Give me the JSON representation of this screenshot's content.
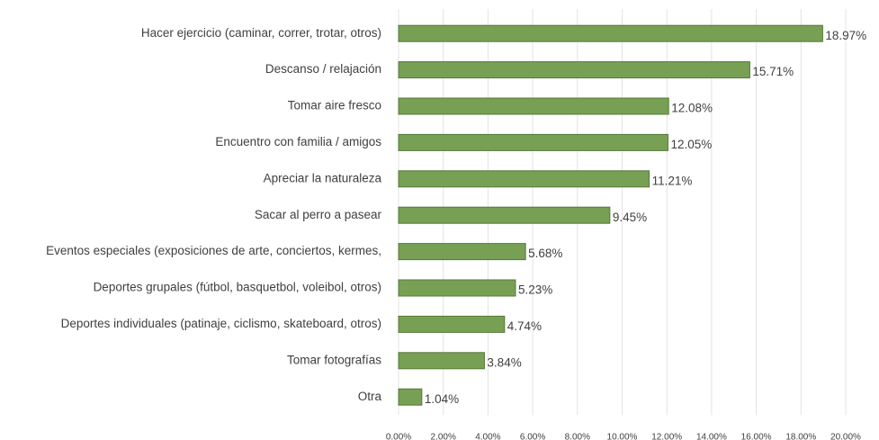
{
  "chart_data": {
    "type": "bar",
    "orientation": "horizontal",
    "categories": [
      "Hacer ejercicio (caminar, correr, trotar, otros)",
      "Descanso / relajación",
      "Tomar aire fresco",
      "Encuentro con familia / amigos",
      "Apreciar la naturaleza",
      "Sacar al perro a pasear",
      "Eventos especiales (exposiciones de arte, conciertos, kermes,",
      "Deportes grupales (fútbol, basquetbol, voleibol, otros)",
      "Deportes individuales (patinaje, ciclismo, skateboard, otros)",
      "Tomar fotografías",
      "Otra"
    ],
    "values": [
      18.97,
      15.71,
      12.08,
      12.05,
      11.21,
      9.45,
      5.68,
      5.23,
      4.74,
      3.84,
      1.04
    ],
    "value_labels": [
      "18.97%",
      "15.71%",
      "12.08%",
      "12.05%",
      "11.21%",
      "9.45%",
      "5.68%",
      "5.23%",
      "4.74%",
      "3.84%",
      "1.04%"
    ],
    "color": "#77a054",
    "xlim": [
      0,
      20
    ],
    "xticks": [
      {
        "value": 0,
        "label": "0.00%"
      },
      {
        "value": 2,
        "label": "2.00%"
      },
      {
        "value": 4,
        "label": "4.00%"
      },
      {
        "value": 6,
        "label": "6.00%"
      },
      {
        "value": 8,
        "label": "8.00%"
      },
      {
        "value": 10,
        "label": "10.00%"
      },
      {
        "value": 12,
        "label": "12.00%"
      },
      {
        "value": 14,
        "label": "14.00%"
      },
      {
        "value": 16,
        "label": "16.00%"
      },
      {
        "value": 18,
        "label": "18.00%"
      },
      {
        "value": 20,
        "label": "20.00%"
      }
    ],
    "grid": true
  }
}
